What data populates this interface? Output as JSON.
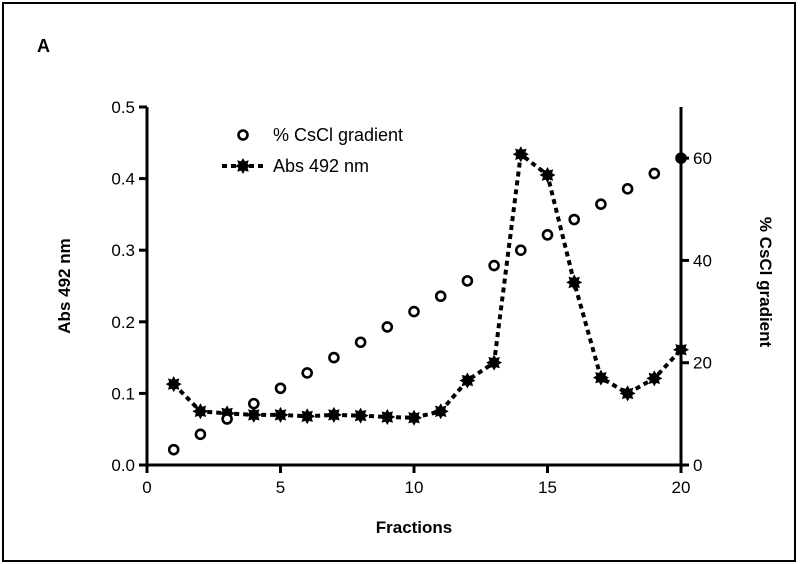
{
  "panel_label": "A",
  "chart_data": {
    "type": "line",
    "title": "",
    "xlabel": "Fractions",
    "ylabel": "Abs 492 nm",
    "y2label": "% CsCl gradient",
    "xlim": [
      0,
      20
    ],
    "ylim": [
      0,
      0.5
    ],
    "y2lim": [
      0,
      70
    ],
    "x_ticks": [
      "0",
      "5",
      "10",
      "15",
      "20"
    ],
    "y_ticks": [
      "0.0",
      "0.1",
      "0.2",
      "0.3",
      "0.4",
      "0.5"
    ],
    "y2_ticks": [
      "0",
      "20",
      "40",
      "60"
    ],
    "grid": false,
    "legend_position": "top-left",
    "series": [
      {
        "name": "% CsCl gradient",
        "axis": "right",
        "style": "open-circle markers, no line",
        "x": [
          1,
          2,
          3,
          4,
          5,
          6,
          7,
          8,
          9,
          10,
          11,
          12,
          13,
          14,
          15,
          16,
          17,
          18,
          19,
          20
        ],
        "values": [
          3,
          6,
          9,
          12,
          15,
          18,
          21,
          24,
          27,
          30,
          33,
          36,
          39,
          42,
          45,
          48,
          51,
          54,
          57,
          60
        ]
      },
      {
        "name": "Abs 492 nm",
        "axis": "left",
        "style": "filled star markers, dotted line",
        "x": [
          1,
          2,
          3,
          4,
          5,
          6,
          7,
          8,
          9,
          10,
          11,
          12,
          13,
          14,
          15,
          16,
          17,
          18,
          19,
          20
        ],
        "values": [
          0.113,
          0.075,
          0.072,
          0.07,
          0.07,
          0.068,
          0.07,
          0.069,
          0.067,
          0.066,
          0.075,
          0.118,
          0.143,
          0.434,
          0.405,
          0.255,
          0.122,
          0.1,
          0.121,
          0.161
        ]
      }
    ]
  }
}
